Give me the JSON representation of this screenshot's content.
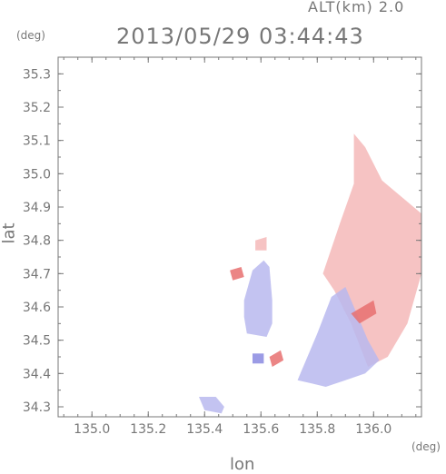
{
  "chart_data": {
    "type": "heatmap",
    "title": "2013/05/29 03:44:43",
    "subtitle": "ALT(km) 2.0",
    "xlabel": "lon",
    "ylabel": "lat",
    "xunit": "(deg)",
    "yunit": "(deg)",
    "xlim": [
      134.88,
      136.17
    ],
    "ylim": [
      34.27,
      35.35
    ],
    "xticks": [
      135.0,
      135.2,
      135.4,
      135.6,
      135.8,
      136.0
    ],
    "xtick_labels": [
      "135.0",
      "135.2",
      "135.4",
      "135.6",
      "135.8",
      "136.0"
    ],
    "yticks": [
      34.3,
      34.4,
      34.5,
      34.6,
      34.7,
      34.8,
      34.9,
      35.0,
      35.1,
      35.2,
      35.3
    ],
    "ytick_labels": [
      "34.3",
      "34.4",
      "34.5",
      "34.6",
      "34.7",
      "34.8",
      "34.9",
      "35.0",
      "35.1",
      "35.2",
      "35.3"
    ],
    "grid": false,
    "colors": {
      "positive": "#f4b8b8",
      "negative": "#b8b8ee",
      "strong_positive": "#e87070",
      "strong_negative": "#8a8ae0",
      "axis": "#777777"
    },
    "regions": [
      {
        "name": "east-echo-positive",
        "sign": "positive",
        "lon": [
          135.82,
          135.88,
          135.93,
          135.93,
          135.97,
          136.03,
          136.1,
          136.17,
          136.17,
          136.12,
          136.05,
          135.98,
          135.92,
          135.86
        ],
        "lat": [
          34.7,
          34.85,
          34.97,
          35.12,
          35.08,
          34.98,
          34.93,
          34.88,
          34.7,
          34.55,
          34.45,
          34.42,
          34.55,
          34.65
        ]
      },
      {
        "name": "east-echo-negative",
        "sign": "negative",
        "lon": [
          135.74,
          135.8,
          135.85,
          135.9,
          135.94,
          135.98,
          136.02,
          135.97,
          135.9,
          135.83,
          135.78,
          135.73
        ],
        "lat": [
          34.4,
          34.52,
          34.63,
          34.66,
          34.58,
          34.5,
          34.44,
          34.4,
          34.38,
          34.36,
          34.37,
          34.38
        ]
      },
      {
        "name": "central-echo-negative",
        "sign": "negative",
        "lon": [
          135.54,
          135.57,
          135.61,
          135.63,
          135.64,
          135.64,
          135.62,
          135.55,
          135.54
        ],
        "lat": [
          34.62,
          34.71,
          34.74,
          34.72,
          34.62,
          34.55,
          34.51,
          34.52,
          34.57
        ]
      },
      {
        "name": "south-echo-negative",
        "sign": "negative",
        "lon": [
          135.38,
          135.44,
          135.47,
          135.46,
          135.4
        ],
        "lat": [
          34.33,
          34.33,
          34.3,
          34.28,
          34.29
        ]
      },
      {
        "name": "small-cell-1",
        "sign": "strong_positive",
        "lon": [
          135.63,
          135.67,
          135.68,
          135.64
        ],
        "lat": [
          34.45,
          34.47,
          34.44,
          34.42
        ]
      },
      {
        "name": "small-cell-2",
        "sign": "strong_positive",
        "lon": [
          135.49,
          135.53,
          135.54,
          135.5
        ],
        "lat": [
          34.71,
          34.72,
          34.69,
          34.68
        ]
      },
      {
        "name": "small-cell-3",
        "sign": "positive",
        "lon": [
          135.58,
          135.62,
          135.62,
          135.58
        ],
        "lat": [
          34.8,
          34.81,
          34.77,
          34.77
        ]
      },
      {
        "name": "small-cell-4",
        "sign": "strong_negative",
        "lon": [
          135.57,
          135.61,
          135.61,
          135.57
        ],
        "lat": [
          34.46,
          34.46,
          34.43,
          34.43
        ]
      },
      {
        "name": "small-cell-5",
        "sign": "strong_positive",
        "lon": [
          135.92,
          136.0,
          136.01,
          135.95
        ],
        "lat": [
          34.58,
          34.62,
          34.58,
          34.55
        ]
      }
    ]
  }
}
